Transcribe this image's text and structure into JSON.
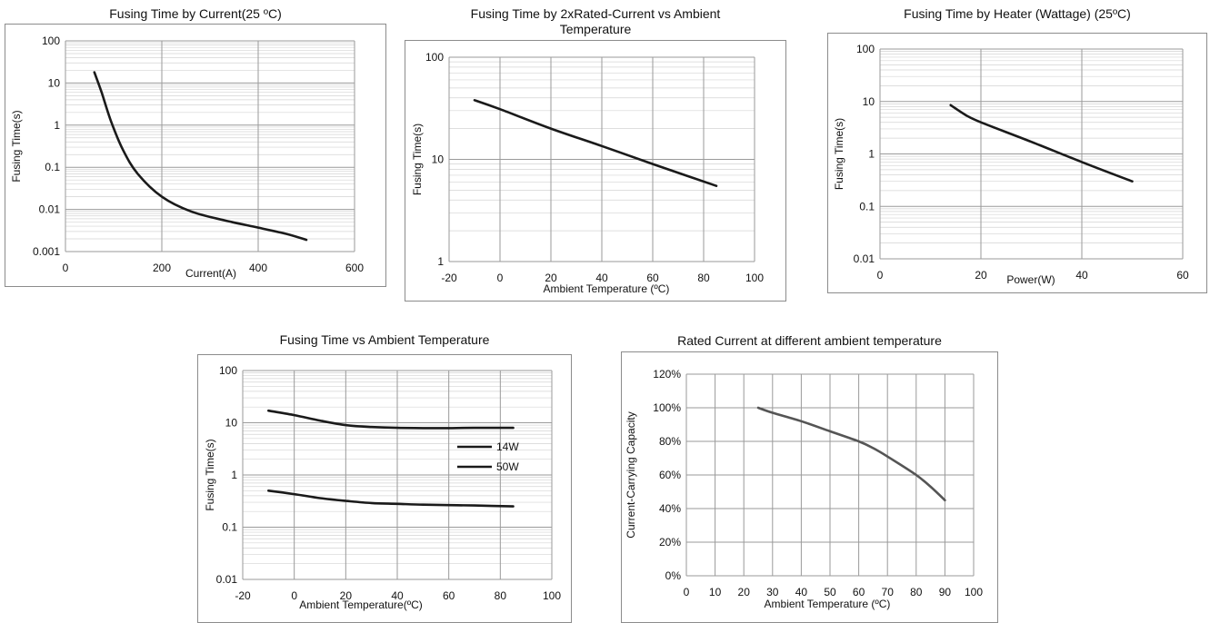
{
  "chart_data": [
    {
      "id": "c1",
      "type": "line",
      "title": "Fusing Time by Current(25 ºC)",
      "xlabel": "Current(A)",
      "ylabel": "Fusing Time(s)",
      "xlim": [
        0,
        600
      ],
      "xticks": [
        0,
        200,
        400,
        600
      ],
      "xtick_labels": [
        "0",
        "200",
        "400",
        "600"
      ],
      "ylim": [
        0.001,
        100
      ],
      "yscale": "log",
      "yticks": [
        0.001,
        0.01,
        0.1,
        1,
        10,
        100
      ],
      "ytick_labels": [
        "0.001",
        "0.01",
        "0.1",
        "1",
        "10",
        "100"
      ],
      "grid": true,
      "series": [
        {
          "x": [
            60,
            75,
            95,
            120,
            150,
            200,
            260,
            330,
            400,
            460,
            500
          ],
          "y": [
            18,
            6,
            1.2,
            0.25,
            0.07,
            0.02,
            0.009,
            0.0055,
            0.0037,
            0.0026,
            0.0019
          ]
        }
      ]
    },
    {
      "id": "c2",
      "type": "line",
      "title": "Fusing Time by 2xRated-Current vs Ambient Temperature",
      "title_lines": [
        "Fusing Time by 2xRated-Current vs Ambient",
        "Temperature"
      ],
      "xlabel": "Ambient Temperature (ºC)",
      "ylabel": "Fusing Time(s)",
      "xlim": [
        -20,
        100
      ],
      "xticks": [
        -20,
        0,
        20,
        40,
        60,
        80,
        100
      ],
      "xtick_labels": [
        "-20",
        "0",
        "20",
        "40",
        "60",
        "80",
        "100"
      ],
      "ylim": [
        1,
        100
      ],
      "yscale": "log",
      "yticks": [
        1,
        10,
        100
      ],
      "ytick_labels": [
        "1",
        "10",
        "100"
      ],
      "grid": true,
      "series": [
        {
          "x": [
            -10,
            0,
            20,
            40,
            60,
            85
          ],
          "y": [
            38,
            31,
            20,
            13.5,
            9,
            5.5
          ]
        }
      ]
    },
    {
      "id": "c3",
      "type": "line",
      "title": "Fusing Time by Heater (Wattage) (25ºC)",
      "xlabel": "Power(W)",
      "ylabel": "Fusing Time(s)",
      "xlim": [
        0,
        60
      ],
      "xticks": [
        0,
        20,
        40,
        60
      ],
      "xtick_labels": [
        "0",
        "20",
        "40",
        "60"
      ],
      "ylim": [
        0.01,
        100
      ],
      "yscale": "log",
      "yticks": [
        0.01,
        0.1,
        1,
        10,
        100
      ],
      "ytick_labels": [
        "0.01",
        "0.1",
        "1",
        "10",
        "100"
      ],
      "grid": true,
      "series": [
        {
          "x": [
            14,
            17,
            20,
            30,
            40,
            50
          ],
          "y": [
            8.5,
            5.5,
            4,
            1.7,
            0.7,
            0.3
          ]
        }
      ]
    },
    {
      "id": "c4",
      "type": "line",
      "title": "Fusing Time vs Ambient Temperature",
      "xlabel": "Ambient Temperature(ºC)",
      "ylabel": "Fusing Time(s)",
      "xlim": [
        -20,
        100
      ],
      "xticks": [
        -20,
        0,
        20,
        40,
        60,
        80,
        100
      ],
      "xtick_labels": [
        "-20",
        "0",
        "20",
        "40",
        "60",
        "80",
        "100"
      ],
      "ylim": [
        0.01,
        100
      ],
      "yscale": "log",
      "yticks": [
        0.01,
        0.1,
        1,
        10,
        100
      ],
      "ytick_labels": [
        "0.01",
        "0.1",
        "1",
        "10",
        "100"
      ],
      "grid": true,
      "legend": "center-right",
      "series": [
        {
          "name": "14W",
          "x": [
            -10,
            0,
            10,
            20,
            30,
            40,
            50,
            60,
            70,
            85
          ],
          "y": [
            17,
            14,
            11,
            9,
            8.3,
            8,
            7.9,
            7.9,
            8,
            8
          ]
        },
        {
          "name": "50W",
          "x": [
            -10,
            0,
            10,
            20,
            30,
            40,
            50,
            60,
            70,
            85
          ],
          "y": [
            0.5,
            0.43,
            0.36,
            0.32,
            0.29,
            0.28,
            0.27,
            0.265,
            0.26,
            0.25
          ]
        }
      ]
    },
    {
      "id": "c5",
      "type": "line",
      "title": "Rated Current at different ambient temperature",
      "xlabel": "Ambient Temperature (ºC)",
      "ylabel": "Current-Carrying Capacity",
      "xlim": [
        0,
        100
      ],
      "xticks": [
        0,
        10,
        20,
        30,
        40,
        50,
        60,
        70,
        80,
        90,
        100
      ],
      "xtick_labels": [
        "0",
        "10",
        "20",
        "30",
        "40",
        "50",
        "60",
        "70",
        "80",
        "90",
        "100"
      ],
      "ylim": [
        0,
        120
      ],
      "yscale": "linear",
      "yticks": [
        0,
        20,
        40,
        60,
        80,
        100,
        120
      ],
      "ytick_labels": [
        "0%",
        "20%",
        "40%",
        "60%",
        "80%",
        "100%",
        "120%"
      ],
      "grid": true,
      "series": [
        {
          "x": [
            25,
            30,
            40,
            50,
            60,
            65,
            70,
            80,
            85,
            90
          ],
          "y": [
            100,
            97,
            92,
            86,
            80,
            76,
            71,
            60,
            53,
            45
          ]
        }
      ]
    }
  ]
}
